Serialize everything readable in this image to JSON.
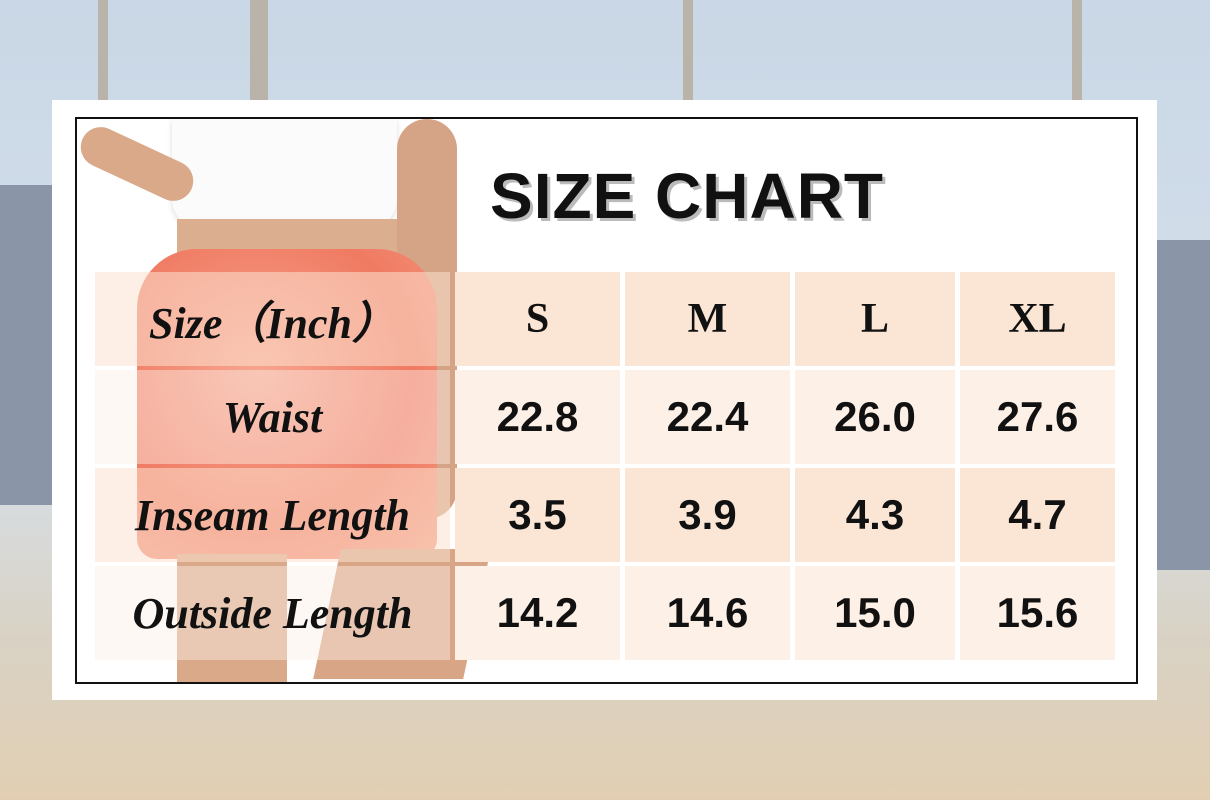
{
  "title": "SIZE CHART",
  "table": {
    "header": [
      "Size（Inch）",
      "S",
      "M",
      "L",
      "XL"
    ],
    "rows": [
      {
        "label": "Waist",
        "values": [
          "22.8",
          "22.4",
          "26.0",
          "27.6"
        ]
      },
      {
        "label": "Inseam Length",
        "values": [
          "3.5",
          "3.9",
          "4.3",
          "4.7"
        ]
      },
      {
        "label": "Outside Length",
        "values": [
          "14.2",
          "14.6",
          "15.0",
          "15.6"
        ]
      }
    ]
  },
  "colors": {
    "header_bg": "#fbe6d6",
    "row_bg": "#fdf0e6",
    "shorts": "#f4876e",
    "border": "#111111"
  }
}
